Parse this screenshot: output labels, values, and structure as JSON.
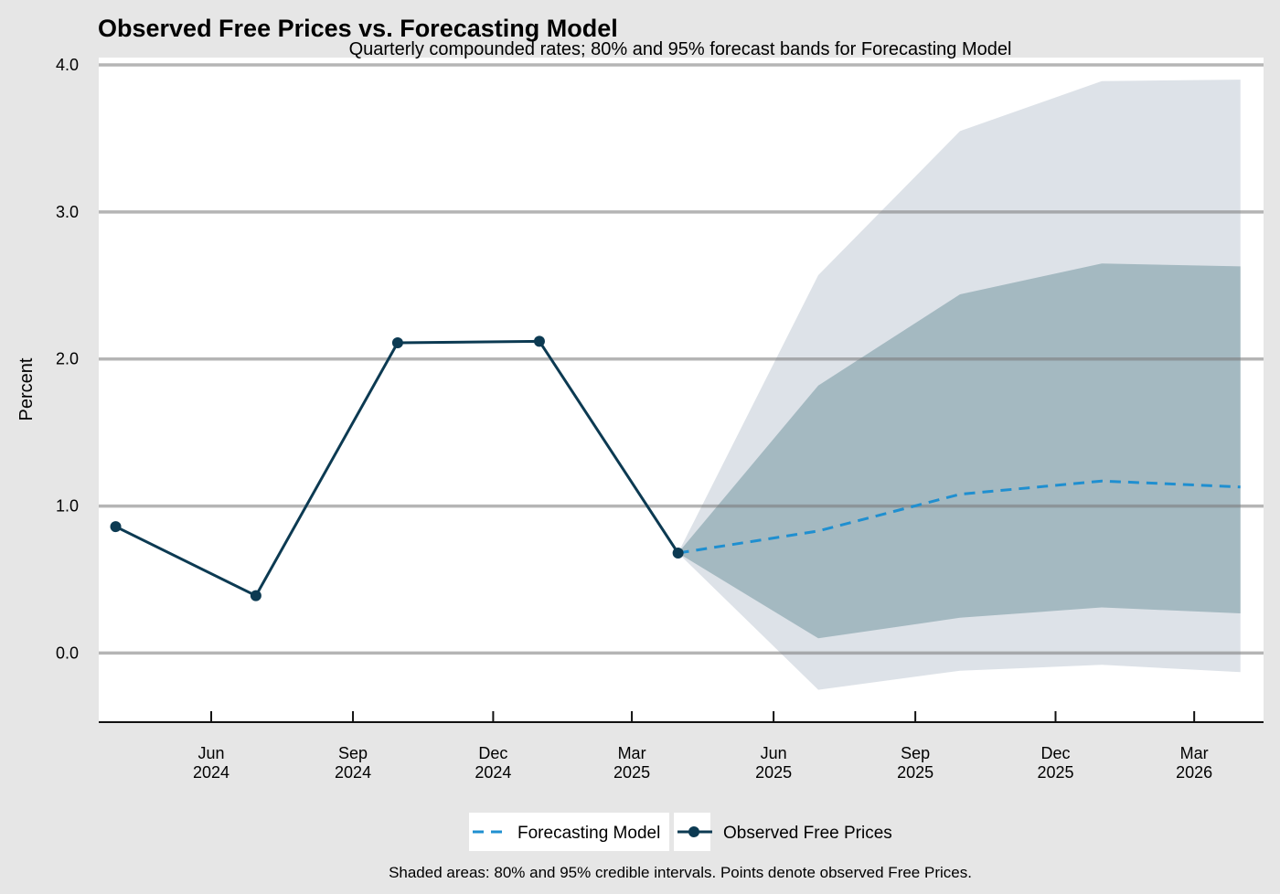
{
  "chart_data": {
    "type": "line",
    "title": "Observed Free Prices vs. Forecasting Model",
    "subtitle": "Quarterly compounded rates; 80% and 95% forecast bands for Forecasting Model",
    "ylabel": "Percent",
    "xlabel": "",
    "caption": "Shaded areas: 80% and 95% credible intervals. Points denote observed Free Prices.",
    "x_axis": {
      "type": "date",
      "range": [
        "2024-03-20",
        "2026-04-15"
      ],
      "ticks": [
        {
          "date": "2024-06-01",
          "line1": "Jun",
          "line2": "2024"
        },
        {
          "date": "2024-09-01",
          "line1": "Sep",
          "line2": "2024"
        },
        {
          "date": "2024-12-01",
          "line1": "Dec",
          "line2": "2024"
        },
        {
          "date": "2025-03-01",
          "line1": "Mar",
          "line2": "2025"
        },
        {
          "date": "2025-06-01",
          "line1": "Jun",
          "line2": "2025"
        },
        {
          "date": "2025-09-01",
          "line1": "Sep",
          "line2": "2025"
        },
        {
          "date": "2025-12-01",
          "line1": "Dec",
          "line2": "2025"
        },
        {
          "date": "2026-03-01",
          "line1": "Mar",
          "line2": "2026"
        }
      ]
    },
    "y_axis": {
      "range": [
        -0.47,
        4.05
      ],
      "ticks": [
        {
          "value": 0,
          "label": "0.0"
        },
        {
          "value": 1,
          "label": "1.0"
        },
        {
          "value": 2,
          "label": "2.0"
        },
        {
          "value": 3,
          "label": "3.0"
        },
        {
          "value": 4,
          "label": "4.0"
        }
      ],
      "grid": true
    },
    "observed": {
      "name": "Observed Free Prices",
      "color": "#0c3a52",
      "points": [
        {
          "x": "2024-03-31",
          "y": 0.86
        },
        {
          "x": "2024-06-30",
          "y": 0.39
        },
        {
          "x": "2024-09-30",
          "y": 2.11
        },
        {
          "x": "2024-12-31",
          "y": 2.12
        },
        {
          "x": "2025-03-31",
          "y": 0.68
        }
      ]
    },
    "forecast": {
      "name": "Forecasting Model",
      "color": "#1f8fd0",
      "points": [
        {
          "x": "2025-03-31",
          "y": 0.68,
          "lo80": 0.68,
          "hi80": 0.68,
          "lo95": 0.68,
          "hi95": 0.68
        },
        {
          "x": "2025-06-30",
          "y": 0.83,
          "lo80": 0.1,
          "hi80": 1.82,
          "lo95": -0.25,
          "hi95": 2.57
        },
        {
          "x": "2025-09-30",
          "y": 1.08,
          "lo80": 0.24,
          "hi80": 2.44,
          "lo95": -0.12,
          "hi95": 3.55
        },
        {
          "x": "2025-12-31",
          "y": 1.17,
          "lo80": 0.31,
          "hi80": 2.65,
          "lo95": -0.08,
          "hi95": 3.89
        },
        {
          "x": "2026-03-31",
          "y": 1.13,
          "lo80": 0.27,
          "hi80": 2.63,
          "lo95": -0.13,
          "hi95": 3.9
        }
      ],
      "band80_color": "#a4b9c1",
      "band95_color": "#dde2e8"
    },
    "legend": {
      "placement": "bottom",
      "entries": [
        "Forecasting Model",
        "Observed Free Prices"
      ]
    },
    "colors": {
      "background": "#e6e6e6",
      "panel": "#ffffff",
      "grid": "#bdbdbd"
    }
  }
}
